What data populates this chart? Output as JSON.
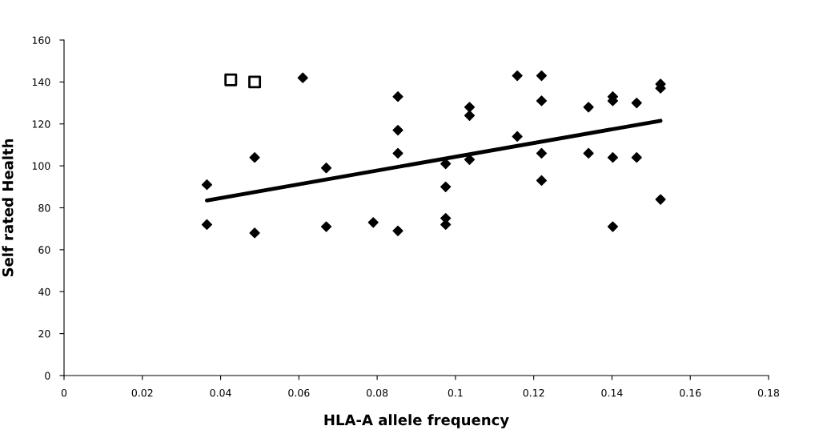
{
  "chart_data": {
    "type": "scatter",
    "xlabel": "HLA-A allele frequency",
    "ylabel": "Self rated Health",
    "xlim": [
      0,
      0.18
    ],
    "xticks": [
      0,
      0.02,
      0.04,
      0.06,
      0.08,
      0.1,
      0.12,
      0.14,
      0.16,
      0.18
    ],
    "ylim": [
      0,
      160
    ],
    "yticks": [
      0,
      20,
      40,
      60,
      80,
      100,
      120,
      140,
      160
    ],
    "grid": false,
    "legend": false,
    "series": [
      {
        "marker": "diamond",
        "color": "#000000",
        "x": [
          0.0365,
          0.0365,
          0.0487,
          0.0487,
          0.061,
          0.067,
          0.067,
          0.079,
          0.0853,
          0.0853,
          0.0853,
          0.0853,
          0.0975,
          0.0975,
          0.0975,
          0.0975,
          0.1036,
          0.1036,
          0.1036,
          0.1158,
          0.1158,
          0.122,
          0.122,
          0.122,
          0.122,
          0.134,
          0.134,
          0.1402,
          0.1402,
          0.1402,
          0.1402,
          0.1463,
          0.1463,
          0.1524,
          0.1524,
          0.1524
        ],
        "values": [
          91,
          72,
          104,
          68,
          142,
          99,
          71,
          73,
          133,
          117,
          106,
          69,
          101,
          90,
          75,
          72,
          128,
          124,
          103,
          143,
          114,
          143,
          131,
          106,
          93,
          128,
          106,
          133,
          131,
          104,
          71,
          130,
          104,
          139,
          137,
          84
        ]
      },
      {
        "marker": "square",
        "color": "#000000",
        "x": [
          0.0426,
          0.0487
        ],
        "values": [
          141,
          140
        ]
      },
      {
        "type": "line",
        "marker": "none",
        "color": "#000000",
        "x": [
          0.0365,
          0.1524
        ],
        "values": [
          83.5,
          121.5
        ]
      }
    ]
  }
}
